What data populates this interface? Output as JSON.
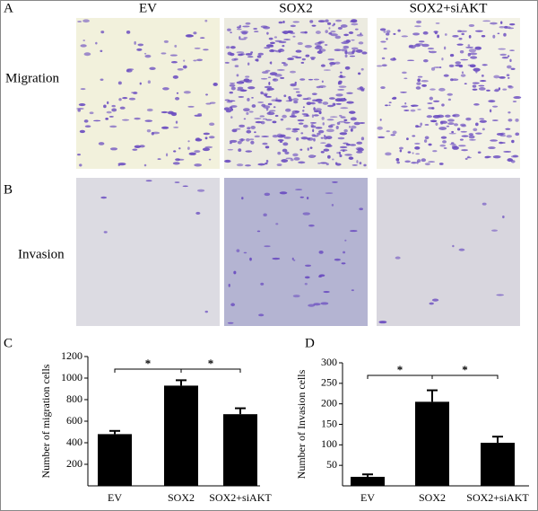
{
  "figure": {
    "panels": [
      "A",
      "B"
    ],
    "columns": [
      "EV",
      "SOX2",
      "SOX2+siAKT"
    ],
    "rows": [
      "Migration",
      "Invasion"
    ]
  },
  "chart_data": [
    {
      "type": "bar",
      "panel": "C",
      "y_label": "Number of migration cells",
      "categories": [
        "EV",
        "SOX2",
        "SOX2+siAKT"
      ],
      "values": [
        480,
        930,
        665
      ],
      "errors": [
        30,
        50,
        55
      ],
      "color": "#000000",
      "ylim": [
        0,
        1200
      ],
      "yticks": [
        200,
        400,
        600,
        800,
        1000,
        1200
      ],
      "annotations": [
        "*",
        "*"
      ]
    },
    {
      "type": "bar",
      "panel": "D",
      "y_label": "Number of Invasion cells",
      "categories": [
        "EV",
        "SOX2",
        "SOX2+siAKT"
      ],
      "values": [
        22,
        205,
        105
      ],
      "errors": [
        6,
        28,
        15
      ],
      "color": "#000000",
      "ylim": [
        0,
        300
      ],
      "yticks": [
        50,
        100,
        150,
        200,
        250,
        300
      ],
      "annotations": [
        "*",
        "*"
      ]
    }
  ]
}
